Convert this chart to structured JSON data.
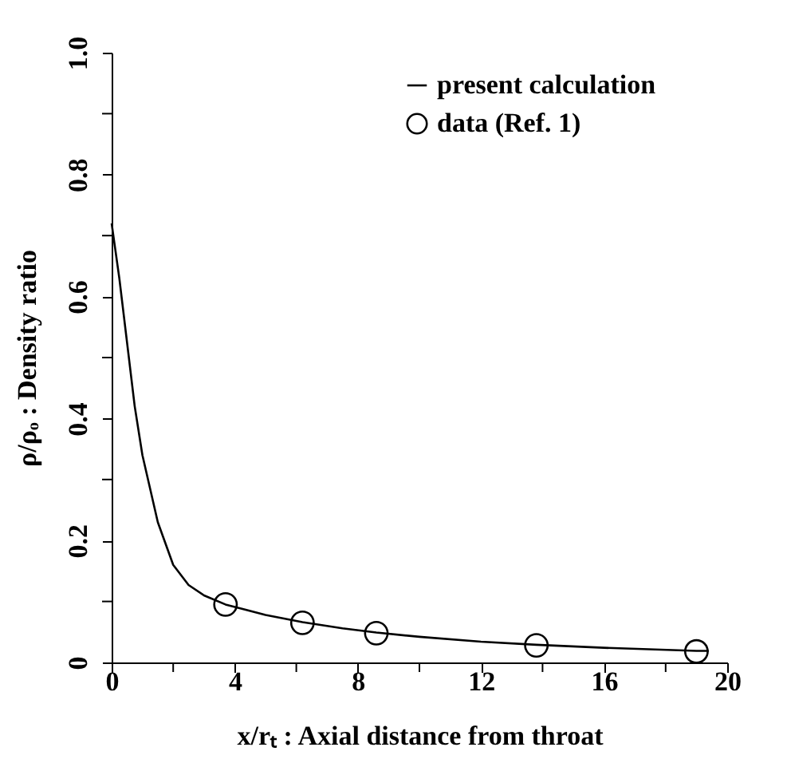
{
  "chart_data": {
    "type": "line",
    "xlabel": "x/rₜ : Axial distance from throat",
    "ylabel": "ρ/ρₒ : Density ratio",
    "xlim": [
      0,
      20
    ],
    "ylim": [
      0,
      1.0
    ],
    "xticks": [
      0,
      {
        "value": 2,
        "label": null
      },
      4,
      {
        "value": 6,
        "label": null
      },
      8,
      {
        "value": 10,
        "label": null
      },
      12,
      {
        "value": 14,
        "label": null
      },
      16,
      {
        "value": 18,
        "label": null
      },
      20
    ],
    "yticks": [
      0,
      {
        "value": 0.1,
        "label": null
      },
      0.2,
      {
        "value": 0.3,
        "label": null
      },
      0.4,
      {
        "value": 0.5,
        "label": null
      },
      0.6,
      {
        "value": 0.7,
        "label": null
      },
      0.8,
      {
        "value": 0.9,
        "label": null
      },
      {
        "value": 1.0,
        "label": "1.0"
      }
    ],
    "grid": false,
    "legend": "top right",
    "series": [
      {
        "name": "present calculation",
        "type": "line",
        "color": "#000000",
        "marker": "none",
        "line_style": "solid",
        "x": [
          0,
          0.25,
          0.5,
          0.75,
          1.0,
          1.5,
          2,
          2.5,
          3,
          3.7,
          5,
          6.2,
          7.5,
          8.6,
          10,
          12,
          13.8,
          16,
          19,
          19.4
        ],
        "values": [
          0.72,
          0.63,
          0.525,
          0.42,
          0.34,
          0.23,
          0.16,
          0.127,
          0.11,
          0.095,
          0.078,
          0.066,
          0.056,
          0.049,
          0.042,
          0.034,
          0.029,
          0.024,
          0.019,
          0.019
        ]
      },
      {
        "name": "data (Ref. 1)",
        "type": "scatter",
        "color": "#000000",
        "marker": "circle",
        "x": [
          3.7,
          6.2,
          8.6,
          13.8,
          19
        ],
        "values": [
          0.095,
          0.065,
          0.048,
          0.028,
          0.018
        ]
      }
    ]
  }
}
